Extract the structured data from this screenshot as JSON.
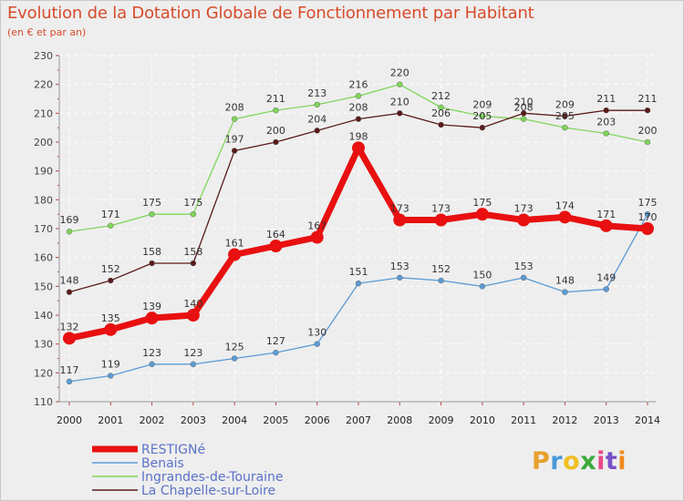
{
  "title": "Evolution de la Dotation Globale de Fonctionnement par Habitant",
  "subtitle": "(en € et par an)",
  "logo": {
    "letters": [
      "P",
      "r",
      "o",
      "x",
      "i",
      "t",
      "i"
    ],
    "colors": [
      "#e8a02a",
      "#4a9ad8",
      "#f0c020",
      "#3aaa3a",
      "#e84a8a",
      "#7a50c8",
      "#f08a20"
    ]
  },
  "chart_data": {
    "type": "line",
    "x": [
      "2000",
      "2001",
      "2002",
      "2003",
      "2004",
      "2005",
      "2006",
      "2007",
      "2008",
      "2009",
      "2010",
      "2011",
      "2012",
      "2013",
      "2014"
    ],
    "ylim": [
      110,
      230
    ],
    "yticks": [
      "110",
      "120",
      "130",
      "140",
      "150",
      "160",
      "170",
      "180",
      "190",
      "200",
      "210",
      "220",
      "230"
    ],
    "grid": true,
    "legend_position": "bottom-left",
    "series": [
      {
        "name": "Benais",
        "color": "#5b9bd5",
        "values": [
          117,
          119,
          123,
          123,
          125,
          127,
          130,
          151,
          153,
          152,
          150,
          153,
          148,
          149,
          175
        ]
      },
      {
        "name": "Ingrandes-de-Touraine",
        "color": "#7fd55a",
        "values": [
          169,
          171,
          175,
          175,
          208,
          211,
          213,
          216,
          220,
          212,
          209,
          208,
          205,
          203,
          200
        ]
      },
      {
        "name": "La Chapelle-sur-Loire",
        "color": "#5a1a1a",
        "values": [
          148,
          152,
          158,
          158,
          197,
          200,
          204,
          208,
          210,
          206,
          205,
          210,
          209,
          211,
          211
        ]
      },
      {
        "name": "RESTIGNé",
        "color": "#e81010",
        "values": [
          132,
          135,
          139,
          140,
          161,
          164,
          167,
          198,
          173,
          173,
          175,
          173,
          174,
          171,
          170
        ]
      }
    ],
    "legend_order": [
      "RESTIGNé",
      "Benais",
      "Ingrandes-de-Touraine",
      "La Chapelle-sur-Loire"
    ]
  }
}
